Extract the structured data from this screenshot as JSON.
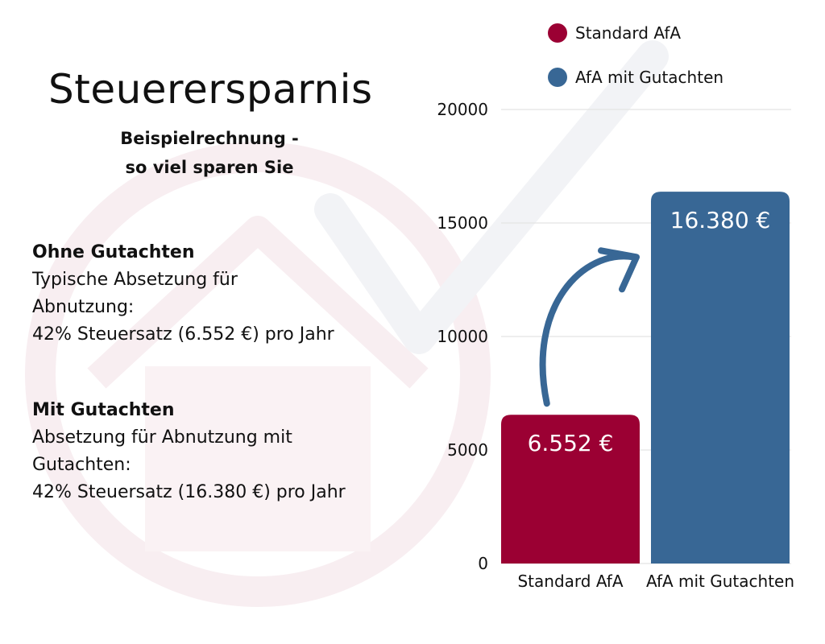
{
  "title": "Steuerersparnis",
  "subtitle": [
    "Beispielrechnung -",
    "so viel sparen Sie"
  ],
  "sections": [
    {
      "heading": "Ohne Gutachten",
      "lines": [
        "Typische Absetzung für",
        "Abnutzung:",
        "42% Steuersatz (6.552 €) pro Jahr"
      ]
    },
    {
      "heading": "Mit Gutachten",
      "lines": [
        "Absetzung für Abnutzung mit",
        "Gutachten:",
        "42% Steuersatz (16.380 €) pro Jahr"
      ]
    }
  ],
  "colors": {
    "standard": "#9B0033",
    "gutachten": "#386795",
    "arrow": "#386795",
    "watermark": "#f6eef0"
  },
  "chart_data": {
    "type": "bar",
    "categories": [
      "Standard AfA",
      "AfA mit Gutachten"
    ],
    "values": [
      6552,
      16380
    ],
    "data_labels": [
      "6.552 €",
      "16.380 €"
    ],
    "legend": [
      "Standard AfA",
      "AfA mit Gutachten"
    ],
    "legend_position": "top-right",
    "yticks": [
      0,
      5000,
      10000,
      15000,
      20000
    ],
    "ylim": [
      0,
      20000
    ],
    "grid": true,
    "annotation": "curved arrow from Standard AfA bar to AfA mit Gutachten bar"
  }
}
